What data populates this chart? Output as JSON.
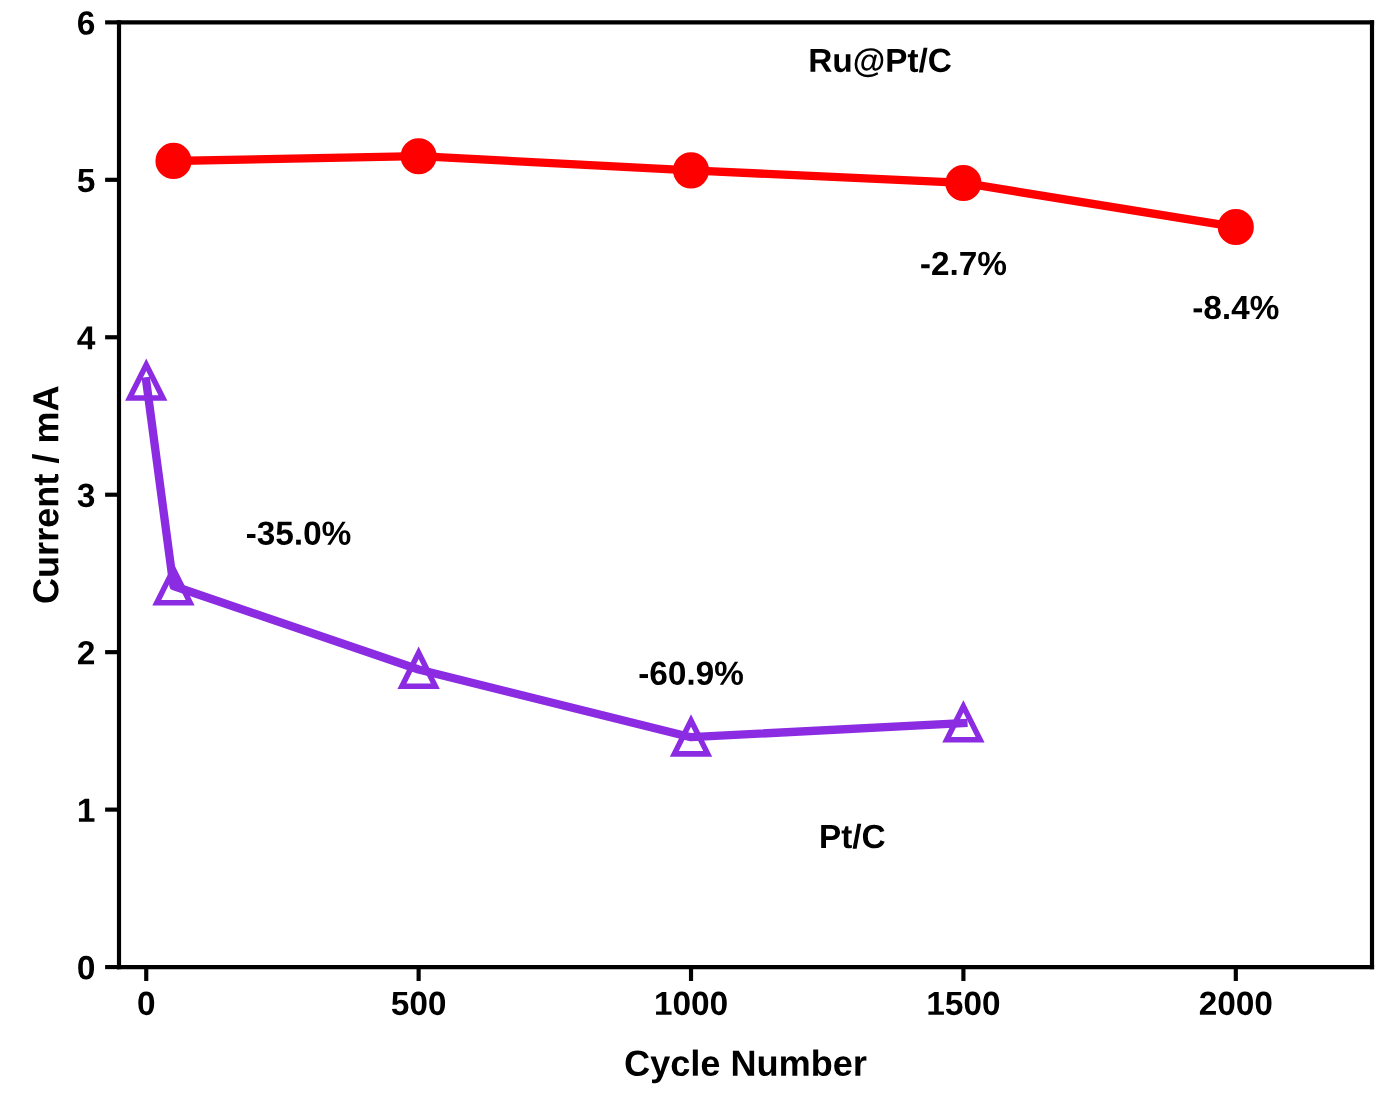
{
  "chart_data": {
    "type": "line",
    "xlabel": "Cycle Number",
    "ylabel": "Current / mA",
    "xlim": [
      -50,
      2250
    ],
    "ylim": [
      0,
      6
    ],
    "xticks": [
      0,
      500,
      1000,
      1500,
      2000
    ],
    "yticks": [
      0,
      1,
      2,
      3,
      4,
      5,
      6
    ],
    "grid": false,
    "legend": false,
    "series": [
      {
        "name": "Ru@Pt/C",
        "color": "#ff0000",
        "marker": "circle",
        "x": [
          50,
          500,
          1000,
          1500,
          2000
        ],
        "values": [
          5.12,
          5.15,
          5.06,
          4.98,
          4.7
        ]
      },
      {
        "name": "Pt/C",
        "color": "#8b2be2",
        "marker": "triangle",
        "x": [
          0,
          50,
          500,
          1000,
          1500
        ],
        "values": [
          3.72,
          2.42,
          1.89,
          1.46,
          1.55
        ]
      }
    ],
    "annotations": [
      {
        "text": "-35.0%",
        "x": 50,
        "y": 2.42
      },
      {
        "text": "-60.9%",
        "x": 1000,
        "y": 1.46
      },
      {
        "text": "-2.7%",
        "x": 1500,
        "y": 4.98
      },
      {
        "text": "-8.4%",
        "x": 2000,
        "y": 4.7
      }
    ]
  }
}
